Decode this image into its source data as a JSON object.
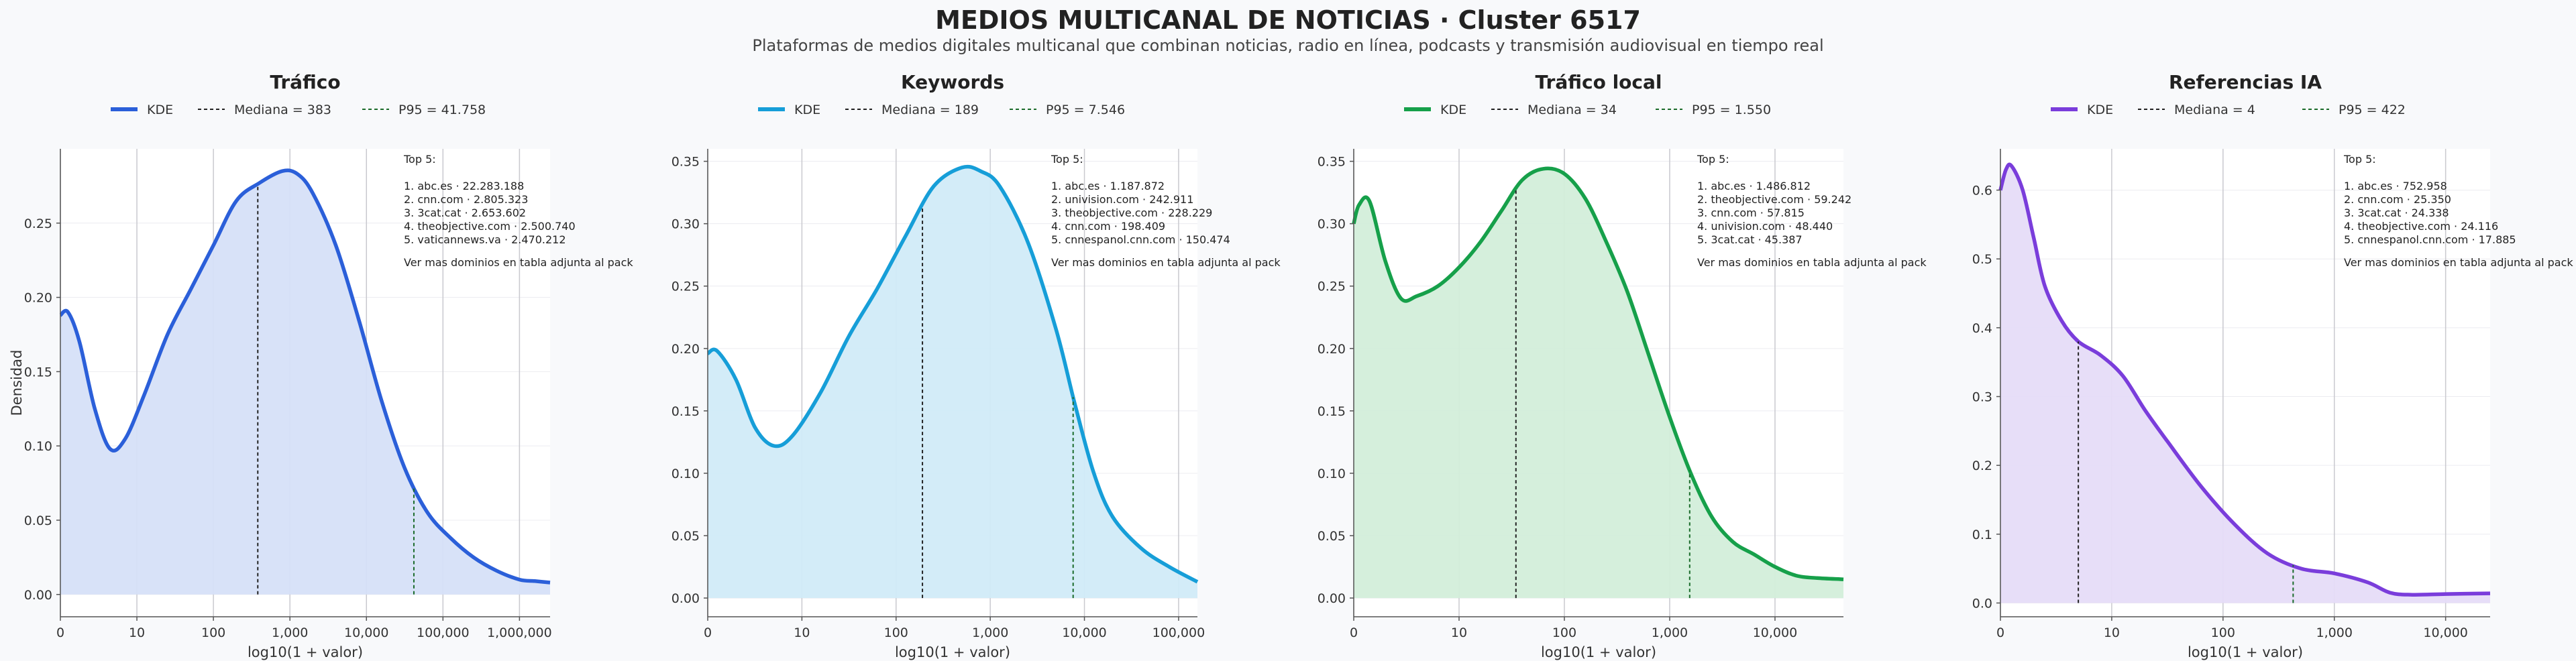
{
  "figure": {
    "title": "MEDIOS MULTICANAL DE NOTICIAS · Cluster 6517",
    "subtitle": "Plataformas de medios digitales multicanal que combinan noticias, radio en línea, podcasts y transmisión audiovisual en tiempo real",
    "ylabel": "Densidad",
    "xlabel": "log10(1 + valor)"
  },
  "chart_data": [
    {
      "type": "area",
      "title": "Tráfico",
      "color": "#2b5fd9",
      "fill": "#d6e0f8",
      "xlabel": "log10(1 + valor)",
      "ylabel": "Densidad",
      "xlim": [
        0,
        6.4
      ],
      "ylim": [
        -0.015,
        0.3
      ],
      "xticks": [
        0,
        1,
        2,
        3,
        4,
        5,
        6
      ],
      "xtick_labels": [
        "0",
        "10",
        "100",
        "1,000",
        "10,000",
        "100,000",
        "1,000,000"
      ],
      "yticks": [
        0,
        0.05,
        0.1,
        0.15,
        0.2,
        0.25
      ],
      "ytick_labels": [
        "0.00",
        "0.05",
        "0.10",
        "0.15",
        "0.20",
        "0.25"
      ],
      "legend": [
        "KDE",
        "Mediana = 383",
        "P95 = 41.758"
      ],
      "median": 2.58,
      "p95": 4.62,
      "x": [
        0,
        0.1,
        0.25,
        0.45,
        0.65,
        0.85,
        1.1,
        1.4,
        1.7,
        2.0,
        2.3,
        2.6,
        2.9,
        3.1,
        3.3,
        3.6,
        3.9,
        4.2,
        4.5,
        4.8,
        5.1,
        5.4,
        5.7,
        6.0,
        6.2,
        6.4
      ],
      "series": [
        {
          "name": "KDE",
          "values": [
            0.188,
            0.19,
            0.17,
            0.125,
            0.098,
            0.105,
            0.135,
            0.175,
            0.205,
            0.235,
            0.265,
            0.277,
            0.285,
            0.283,
            0.27,
            0.235,
            0.185,
            0.13,
            0.085,
            0.055,
            0.038,
            0.025,
            0.016,
            0.01,
            0.009,
            0.008
          ]
        }
      ],
      "top5": [
        "Top 5:",
        "1. abc.es · 22.283.188",
        "2. cnn.com · 2.805.323",
        "3. 3cat.cat · 2.653.602",
        "4. theobjective.com · 2.500.740",
        "5. vaticannews.va · 2.470.212",
        "Ver mas dominios en tabla adjunta al pack"
      ]
    },
    {
      "type": "area",
      "title": "Keywords",
      "color": "#169ed8",
      "fill": "#d1ebf8",
      "xlabel": "log10(1 + valor)",
      "ylabel": "",
      "xlim": [
        0,
        5.2
      ],
      "ylim": [
        -0.015,
        0.36
      ],
      "xticks": [
        0,
        1,
        2,
        3,
        4,
        5
      ],
      "xtick_labels": [
        "0",
        "10",
        "100",
        "1,000",
        "10,000",
        "100,000"
      ],
      "yticks": [
        0,
        0.05,
        0.1,
        0.15,
        0.2,
        0.25,
        0.3,
        0.35
      ],
      "ytick_labels": [
        "0.00",
        "0.05",
        "0.10",
        "0.15",
        "0.20",
        "0.25",
        "0.30",
        "0.35"
      ],
      "legend": [
        "KDE",
        "Mediana = 189",
        "P95 = 7.546"
      ],
      "median": 2.28,
      "p95": 3.88,
      "x": [
        0,
        0.1,
        0.3,
        0.5,
        0.7,
        0.9,
        1.2,
        1.5,
        1.8,
        2.1,
        2.4,
        2.7,
        2.9,
        3.1,
        3.4,
        3.7,
        3.9,
        4.1,
        4.3,
        4.6,
        4.9,
        5.2
      ],
      "series": [
        {
          "name": "KDE",
          "values": [
            0.196,
            0.198,
            0.175,
            0.137,
            0.122,
            0.13,
            0.165,
            0.21,
            0.248,
            0.29,
            0.33,
            0.345,
            0.342,
            0.33,
            0.285,
            0.215,
            0.155,
            0.1,
            0.065,
            0.04,
            0.025,
            0.013
          ]
        }
      ],
      "top5": [
        "Top 5:",
        "1. abc.es · 1.187.872",
        "2. univision.com · 242.911",
        "3. theobjective.com · 228.229",
        "4. cnn.com · 198.409",
        "5. cnnespanol.cnn.com · 150.474",
        "Ver mas dominios en tabla adjunta al pack"
      ]
    },
    {
      "type": "area",
      "title": "Tráfico local",
      "color": "#16a04a",
      "fill": "#d3eeda",
      "xlabel": "log10(1 + valor)",
      "ylabel": "",
      "xlim": [
        0,
        4.65
      ],
      "ylim": [
        -0.015,
        0.36
      ],
      "xticks": [
        0,
        1,
        2,
        3,
        4
      ],
      "xtick_labels": [
        "0",
        "10",
        "100",
        "1,000",
        "10,000"
      ],
      "yticks": [
        0,
        0.05,
        0.1,
        0.15,
        0.2,
        0.25,
        0.3,
        0.35
      ],
      "ytick_labels": [
        "0.00",
        "0.05",
        "0.10",
        "0.15",
        "0.20",
        "0.25",
        "0.30",
        "0.35"
      ],
      "legend": [
        "KDE",
        "Mediana = 34",
        "P95 = 1.550"
      ],
      "median": 1.54,
      "p95": 3.19,
      "x": [
        0,
        0.05,
        0.15,
        0.3,
        0.45,
        0.6,
        0.8,
        1.0,
        1.2,
        1.4,
        1.6,
        1.8,
        2.0,
        2.2,
        2.4,
        2.6,
        2.8,
        3.0,
        3.2,
        3.4,
        3.6,
        3.8,
        4.0,
        4.2,
        4.4,
        4.65
      ],
      "series": [
        {
          "name": "KDE",
          "values": [
            0.3,
            0.315,
            0.318,
            0.27,
            0.24,
            0.242,
            0.25,
            0.265,
            0.285,
            0.31,
            0.335,
            0.344,
            0.34,
            0.32,
            0.285,
            0.245,
            0.195,
            0.145,
            0.1,
            0.065,
            0.045,
            0.035,
            0.025,
            0.018,
            0.016,
            0.015
          ]
        }
      ],
      "top5": [
        "Top 5:",
        "1. abc.es · 1.486.812",
        "2. theobjective.com · 59.242",
        "3. cnn.com · 57.815",
        "4. univision.com · 48.440",
        "5. 3cat.cat · 45.387",
        "Ver mas dominios en tabla adjunta al pack"
      ]
    },
    {
      "type": "area",
      "title": "Referencias IA",
      "color": "#7a3ddb",
      "fill": "#e6dcf8",
      "xlabel": "log10(1 + valor)",
      "ylabel": "",
      "xlim": [
        0,
        4.4
      ],
      "ylim": [
        -0.02,
        0.66
      ],
      "xticks": [
        0,
        1,
        2,
        3,
        4
      ],
      "xtick_labels": [
        "0",
        "10",
        "100",
        "1,000",
        "10,000"
      ],
      "yticks": [
        0,
        0.1,
        0.2,
        0.3,
        0.4,
        0.5,
        0.6
      ],
      "ytick_labels": [
        "0.0",
        "0.1",
        "0.2",
        "0.3",
        "0.4",
        "0.5",
        "0.6"
      ],
      "legend": [
        "KDE",
        "Mediana = 4",
        "P95 = 422"
      ],
      "median": 0.7,
      "p95": 2.63,
      "x": [
        0,
        0.05,
        0.1,
        0.2,
        0.3,
        0.4,
        0.55,
        0.7,
        0.9,
        1.1,
        1.3,
        1.5,
        1.8,
        2.1,
        2.4,
        2.7,
        3.0,
        3.3,
        3.5,
        3.7,
        4.0,
        4.4
      ],
      "series": [
        {
          "name": "KDE",
          "values": [
            0.6,
            0.63,
            0.635,
            0.6,
            0.53,
            0.46,
            0.41,
            0.38,
            0.36,
            0.33,
            0.28,
            0.235,
            0.17,
            0.115,
            0.072,
            0.05,
            0.043,
            0.03,
            0.015,
            0.012,
            0.013,
            0.014
          ]
        }
      ],
      "top5": [
        "Top 5:",
        "1. abc.es · 752.958",
        "2. cnn.com · 25.350",
        "3. 3cat.cat · 24.338",
        "4. theobjective.com · 24.116",
        "5. cnnespanol.cnn.com · 17.885",
        "Ver mas dominios en tabla adjunta al pack"
      ]
    }
  ]
}
